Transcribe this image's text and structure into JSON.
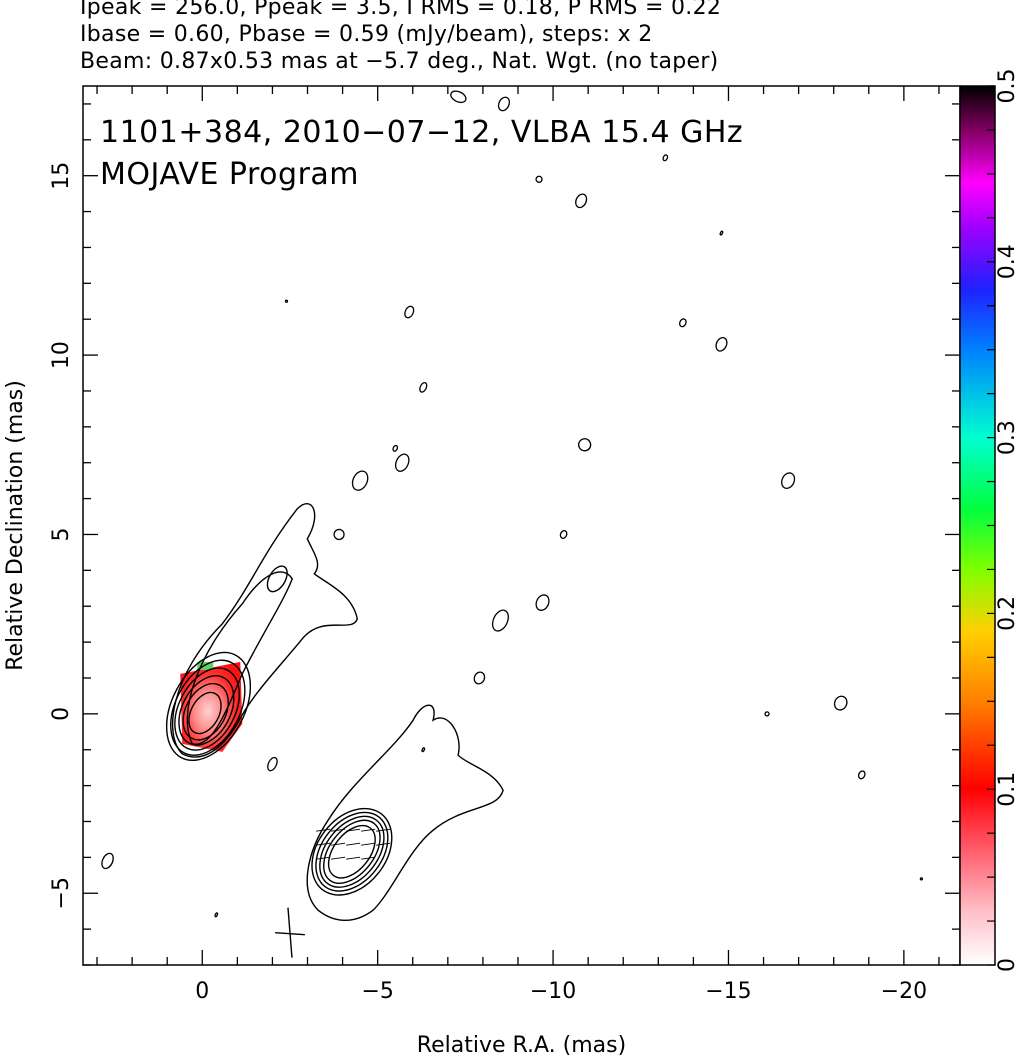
{
  "header": {
    "line1": "Ipeak = 256.0, Ppeak = 3.5, I RMS = 0.18, P RMS = 0.22",
    "line2": "Ibase = 0.60, Pbase = 0.59 (mJy/beam), steps: x 2",
    "line3": "Beam: 0.87x0.53 mas at −5.7 deg., Nat. Wgt. (no taper)"
  },
  "chart_data": {
    "type": "contour",
    "title": "1101+384, 2010−07−12, VLBA 15.4 GHz",
    "subtitle": "MOJAVE Program",
    "xlabel": "Relative R.A. (mas)",
    "ylabel": "Relative Declination (mas)",
    "xlim": [
      3.4,
      -21.6
    ],
    "ylim": [
      -7,
      17.5
    ],
    "x_ticks": [
      0,
      -5,
      -10,
      -15,
      -20
    ],
    "x_tick_labels": [
      "0",
      "−5",
      "−10",
      "−15",
      "−20"
    ],
    "y_ticks": [
      -5,
      0,
      5,
      10,
      15
    ],
    "y_tick_labels": [
      "−5",
      "0",
      "5",
      "10",
      "15"
    ],
    "colorbar": {
      "range": [
        0,
        0.5
      ],
      "ticks": [
        0,
        0.1,
        0.2,
        0.3,
        0.4,
        0.5
      ],
      "tick_labels": [
        "0",
        "0.1",
        "0.2",
        "0.3",
        "0.4",
        "0.5"
      ]
    },
    "contour_levels_mJy": [
      0.6,
      1.2,
      2.4,
      4.8,
      9.6,
      19.2,
      38.4,
      76.8,
      153.6
    ],
    "core": {
      "x": 0,
      "y": 0
    },
    "jet_knot": {
      "x": -4.3,
      "y": -3.8
    },
    "beam": {
      "major": 0.87,
      "minor": 0.53,
      "pa_deg": -5.7,
      "x": -2.5,
      "y": -6.1
    },
    "colors": {
      "contour": "#000000",
      "background": "#ffffff",
      "core_fill": "#ff4040"
    }
  }
}
